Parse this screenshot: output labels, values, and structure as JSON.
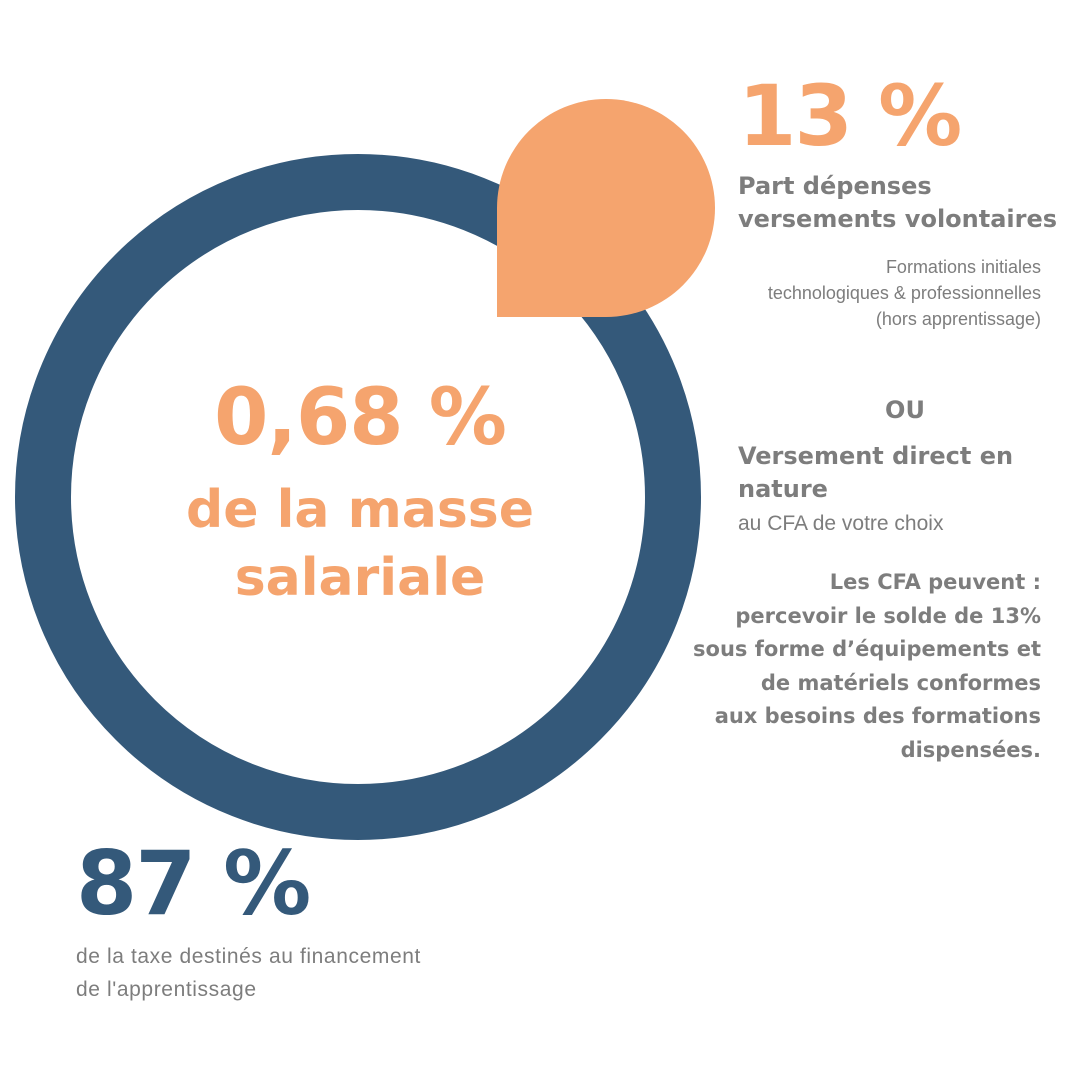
{
  "colors": {
    "ring": "#34597a",
    "accent_orange": "#f5a46e",
    "text_grey": "#7d7d7d",
    "background": "#ffffff"
  },
  "center": {
    "rate": "0,68 %",
    "caption_line1": "de la masse",
    "caption_line2": "salariale"
  },
  "share_voluntary": {
    "value": "13 %",
    "fraction": 0.13,
    "title_line1": "Part dépenses",
    "title_line2": "versements volontaires",
    "detail_line1": "Formations initiales",
    "detail_line2": "technologiques & professionnelles",
    "detail_line3": "(hors apprentissage)"
  },
  "or_label": "OU",
  "direct_payment": {
    "title_line1": "Versement direct en",
    "title_line2": "nature",
    "subtitle": "au CFA de votre choix"
  },
  "cfa_note": {
    "line1": "Les CFA peuvent :",
    "line2": "percevoir le solde de 13%",
    "line3": "sous forme d’équipements et",
    "line4": "de matériels conformes",
    "line5": "aux besoins des formations",
    "line6": "dispensées."
  },
  "share_apprenticeship": {
    "value": "87 %",
    "fraction": 0.87,
    "caption_line1": "de la taxe destinés au financement",
    "caption_line2": "de l'apprentissage"
  }
}
